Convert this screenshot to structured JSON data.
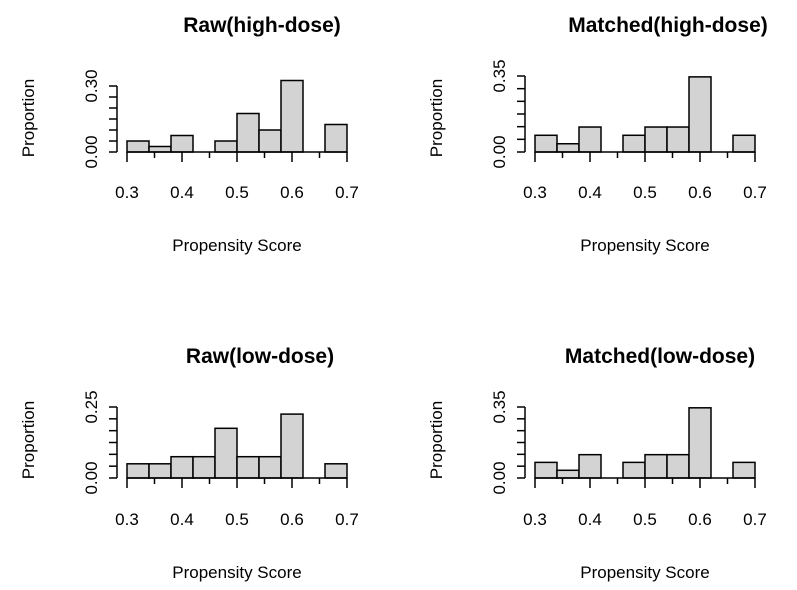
{
  "chart_data": [
    {
      "type": "bar",
      "title": "Raw(high-dose)",
      "xlabel": "Propensity Score",
      "ylabel": "Proportion",
      "bin_edges": [
        0.3,
        0.34,
        0.38,
        0.42,
        0.46,
        0.5,
        0.54,
        0.58,
        0.62,
        0.66,
        0.7
      ],
      "values": [
        0.05,
        0.025,
        0.075,
        0.0,
        0.05,
        0.175,
        0.1,
        0.325,
        0.0,
        0.125
      ],
      "xticks": [
        "0.3",
        "0.4",
        "0.5",
        "0.6",
        "0.7"
      ],
      "yticks": [
        "0.00",
        "0.30"
      ],
      "ylim": [
        0,
        0.3
      ],
      "xlim": [
        0.3,
        0.7
      ]
    },
    {
      "type": "bar",
      "title": "Matched(high-dose)",
      "xlabel": "Propensity Score",
      "ylabel": "Proportion",
      "bin_edges": [
        0.3,
        0.34,
        0.38,
        0.42,
        0.46,
        0.5,
        0.54,
        0.58,
        0.62,
        0.66,
        0.7
      ],
      "values": [
        0.077,
        0.038,
        0.115,
        0.0,
        0.077,
        0.115,
        0.115,
        0.346,
        0.0,
        0.077
      ],
      "xticks": [
        "0.3",
        "0.4",
        "0.5",
        "0.6",
        "0.7"
      ],
      "yticks": [
        "0.00",
        "0.35"
      ],
      "ylim": [
        0,
        0.35
      ],
      "xlim": [
        0.3,
        0.7
      ]
    },
    {
      "type": "bar",
      "title": "Raw(low-dose)",
      "xlabel": "Propensity Score",
      "ylabel": "Proportion",
      "bin_edges": [
        0.3,
        0.34,
        0.38,
        0.42,
        0.46,
        0.5,
        0.54,
        0.58,
        0.62,
        0.66,
        0.7
      ],
      "values": [
        0.05,
        0.05,
        0.075,
        0.075,
        0.175,
        0.075,
        0.075,
        0.225,
        0.0,
        0.05
      ],
      "xticks": [
        "0.3",
        "0.4",
        "0.5",
        "0.6",
        "0.7"
      ],
      "yticks": [
        "0.00",
        "0.25"
      ],
      "ylim": [
        0,
        0.25
      ],
      "xlim": [
        0.3,
        0.7
      ]
    },
    {
      "type": "bar",
      "title": "Matched(low-dose)",
      "xlabel": "Propensity Score",
      "ylabel": "Proportion",
      "bin_edges": [
        0.3,
        0.34,
        0.38,
        0.42,
        0.46,
        0.5,
        0.54,
        0.58,
        0.62,
        0.66,
        0.7
      ],
      "values": [
        0.077,
        0.038,
        0.115,
        0.0,
        0.077,
        0.115,
        0.115,
        0.346,
        0.0,
        0.077
      ],
      "xticks": [
        "0.3",
        "0.4",
        "0.5",
        "0.6",
        "0.7"
      ],
      "yticks": [
        "0.00",
        "0.35"
      ],
      "ylim": [
        0,
        0.35
      ],
      "xlim": [
        0.3,
        0.7
      ]
    }
  ]
}
